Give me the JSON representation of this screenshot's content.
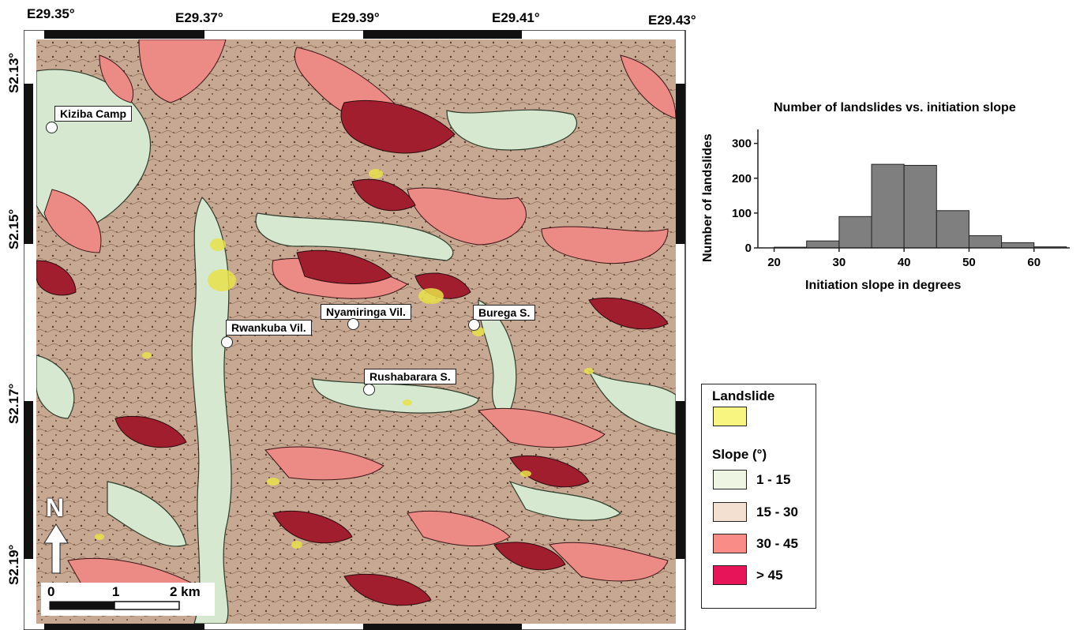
{
  "map": {
    "lon_labels": [
      "E29.35°",
      "E29.37°",
      "E29.39°",
      "E29.41°",
      "E29.43°"
    ],
    "lat_labels": [
      "S2.13°",
      "S2.15°",
      "S2.17°",
      "S2.19°"
    ],
    "places": [
      {
        "name": "Kiziba Camp"
      },
      {
        "name": "Rwankuba Vil."
      },
      {
        "name": "Nyamiringa Vil."
      },
      {
        "name": "Burega S."
      },
      {
        "name": "Rushabarara S."
      }
    ],
    "north_label": "N",
    "scale": {
      "labels": [
        "0",
        "1",
        "2 km"
      ]
    },
    "colors": {
      "landslide": "#f5f26e",
      "slope_1_15": "#d9ead2",
      "slope_15_30": "#c9ab96",
      "slope_30_45": "#ec8a86",
      "slope_gt_45": "#a01e2e"
    }
  },
  "legend": {
    "landslide_title": "Landslide",
    "slope_title": "Slope (°)",
    "items": [
      {
        "label": "1 - 15",
        "color": "#eef5e3"
      },
      {
        "label": "15 - 30",
        "color": "#f3e0d1"
      },
      {
        "label": "30 - 45",
        "color": "#fa8c87"
      },
      {
        "label": "> 45",
        "color": "#e8145a"
      }
    ],
    "landslide_color": "#f8f680"
  },
  "chart_data": {
    "type": "bar",
    "title": "Number of landslides vs. initiation slope",
    "xlabel": "Initiation slope in degrees",
    "ylabel": "Number of landslides",
    "bin_edges": [
      20,
      25,
      30,
      35,
      40,
      45,
      50,
      55,
      60,
      65
    ],
    "values": [
      2,
      20,
      90,
      240,
      237,
      107,
      35,
      15,
      3
    ],
    "xticks": [
      20,
      30,
      40,
      50,
      60
    ],
    "yticks": [
      0,
      100,
      200,
      300
    ],
    "ylim": [
      0,
      340
    ],
    "bar_color": "#7f7f7f"
  }
}
